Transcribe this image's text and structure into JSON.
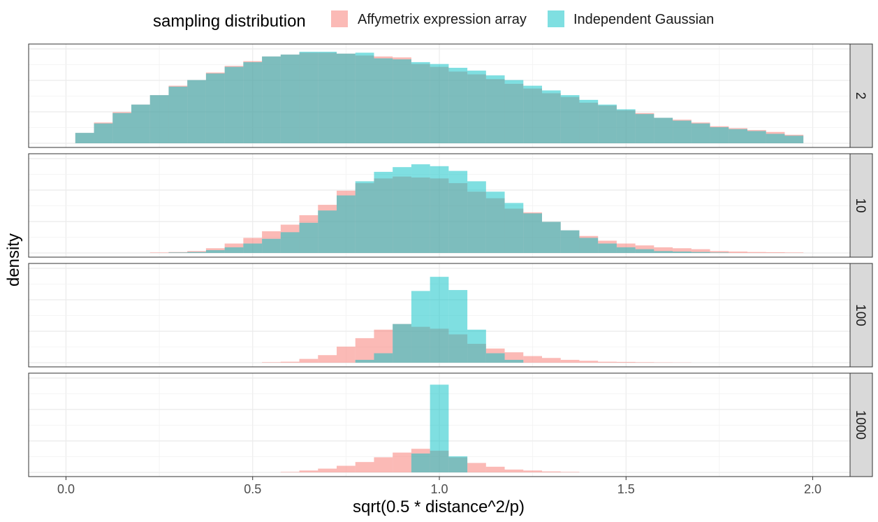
{
  "chart_data": {
    "type": "histogram",
    "facet_variable": "p",
    "xlabel": "sqrt(0.5 * distance^2/p)",
    "ylabel": "density",
    "xlim": [
      -0.1,
      2.1
    ],
    "x_ticks": [
      0.0,
      0.5,
      1.0,
      1.5,
      2.0
    ],
    "x_tick_labels": [
      "0.0",
      "0.5",
      "1.0",
      "1.5",
      "2.0"
    ],
    "legend": {
      "title": "sampling distribution",
      "position": "top",
      "entries": [
        "Affymetrix expression array",
        "Independent Gaussian"
      ]
    },
    "colors": {
      "affymetrix": "#F8766D",
      "gaussian": "#00BFC4",
      "overlap": "#7fbcb8"
    },
    "grid": true,
    "opacity": 0.5,
    "bin_width": 0.05,
    "bins": [
      0.05,
      0.1,
      0.15,
      0.2,
      0.25,
      0.3,
      0.35,
      0.4,
      0.45,
      0.5,
      0.55,
      0.6,
      0.65,
      0.7,
      0.75,
      0.8,
      0.85,
      0.9,
      0.95,
      1.0,
      1.05,
      1.1,
      1.15,
      1.2,
      1.25,
      1.3,
      1.35,
      1.4,
      1.45,
      1.5,
      1.55,
      1.6,
      1.65,
      1.7,
      1.75,
      1.8,
      1.85,
      1.9,
      1.95
    ],
    "facets": [
      {
        "label": "2",
        "ymax": 1.0,
        "series": [
          {
            "name": "Affymetrix expression array",
            "values": [
              0.11,
              0.22,
              0.33,
              0.41,
              0.51,
              0.61,
              0.67,
              0.75,
              0.82,
              0.87,
              0.92,
              0.94,
              0.96,
              0.96,
              0.95,
              0.93,
              0.92,
              0.91,
              0.84,
              0.81,
              0.76,
              0.73,
              0.68,
              0.63,
              0.58,
              0.53,
              0.49,
              0.43,
              0.4,
              0.35,
              0.32,
              0.27,
              0.25,
              0.22,
              0.18,
              0.16,
              0.14,
              0.12,
              0.09
            ]
          },
          {
            "name": "Independent Gaussian",
            "values": [
              0.11,
              0.21,
              0.32,
              0.41,
              0.51,
              0.6,
              0.67,
              0.74,
              0.81,
              0.86,
              0.92,
              0.94,
              0.97,
              0.97,
              0.95,
              0.96,
              0.9,
              0.89,
              0.86,
              0.84,
              0.8,
              0.77,
              0.72,
              0.67,
              0.61,
              0.56,
              0.51,
              0.46,
              0.41,
              0.36,
              0.31,
              0.27,
              0.24,
              0.21,
              0.17,
              0.15,
              0.13,
              0.1,
              0.08
            ]
          }
        ]
      },
      {
        "label": "10",
        "ymax": 1.0,
        "series": [
          {
            "name": "Affymetrix expression array",
            "values": [
              0,
              0,
              0,
              0,
              0.005,
              0.01,
              0.02,
              0.05,
              0.1,
              0.16,
              0.23,
              0.3,
              0.4,
              0.51,
              0.66,
              0.74,
              0.79,
              0.81,
              0.8,
              0.79,
              0.74,
              0.65,
              0.58,
              0.47,
              0.43,
              0.33,
              0.24,
              0.18,
              0.13,
              0.1,
              0.08,
              0.06,
              0.05,
              0.04,
              0.02,
              0.015,
              0.01,
              0.008,
              0.005
            ]
          },
          {
            "name": "Independent Gaussian",
            "values": [
              0,
              0,
              0,
              0,
              0,
              0.005,
              0.01,
              0.03,
              0.06,
              0.1,
              0.15,
              0.22,
              0.32,
              0.45,
              0.61,
              0.76,
              0.86,
              0.91,
              0.94,
              0.92,
              0.87,
              0.76,
              0.65,
              0.53,
              0.42,
              0.33,
              0.24,
              0.16,
              0.1,
              0.06,
              0.04,
              0.02,
              0.015,
              0.01,
              0.005,
              0,
              0,
              0,
              0
            ]
          }
        ]
      },
      {
        "label": "100",
        "ymax": 1.0,
        "series": [
          {
            "name": "Affymetrix expression array",
            "values": [
              0,
              0,
              0,
              0,
              0,
              0,
              0,
              0,
              0,
              0,
              0.005,
              0.01,
              0.04,
              0.08,
              0.17,
              0.26,
              0.35,
              0.41,
              0.38,
              0.36,
              0.3,
              0.2,
              0.15,
              0.11,
              0.07,
              0.05,
              0.03,
              0.02,
              0.01,
              0.008,
              0.005,
              0.003,
              0.002,
              0,
              0,
              0,
              0,
              0,
              0
            ]
          },
          {
            "name": "Independent Gaussian",
            "values": [
              0,
              0,
              0,
              0,
              0,
              0,
              0,
              0,
              0,
              0,
              0,
              0,
              0,
              0,
              0,
              0.03,
              0.1,
              0.41,
              0.76,
              0.91,
              0.77,
              0.35,
              0.1,
              0.03,
              0,
              0,
              0,
              0,
              0,
              0,
              0,
              0,
              0,
              0,
              0,
              0,
              0,
              0,
              0
            ]
          }
        ]
      },
      {
        "label": "1000",
        "ymax": 1.0,
        "series": [
          {
            "name": "Affymetrix expression array",
            "values": [
              0,
              0,
              0,
              0,
              0,
              0,
              0,
              0,
              0,
              0,
              0,
              0.005,
              0.02,
              0.04,
              0.07,
              0.11,
              0.16,
              0.21,
              0.25,
              0.23,
              0.16,
              0.1,
              0.06,
              0.03,
              0.02,
              0.01,
              0.005,
              0,
              0,
              0,
              0,
              0,
              0,
              0,
              0,
              0,
              0,
              0,
              0
            ]
          },
          {
            "name": "Independent Gaussian",
            "values": [
              0,
              0,
              0,
              0,
              0,
              0,
              0,
              0,
              0,
              0,
              0,
              0,
              0,
              0,
              0,
              0,
              0,
              0,
              0.2,
              0.93,
              0.17,
              0,
              0,
              0,
              0,
              0,
              0,
              0,
              0,
              0,
              0,
              0,
              0,
              0,
              0,
              0,
              0,
              0,
              0
            ]
          }
        ]
      }
    ]
  }
}
